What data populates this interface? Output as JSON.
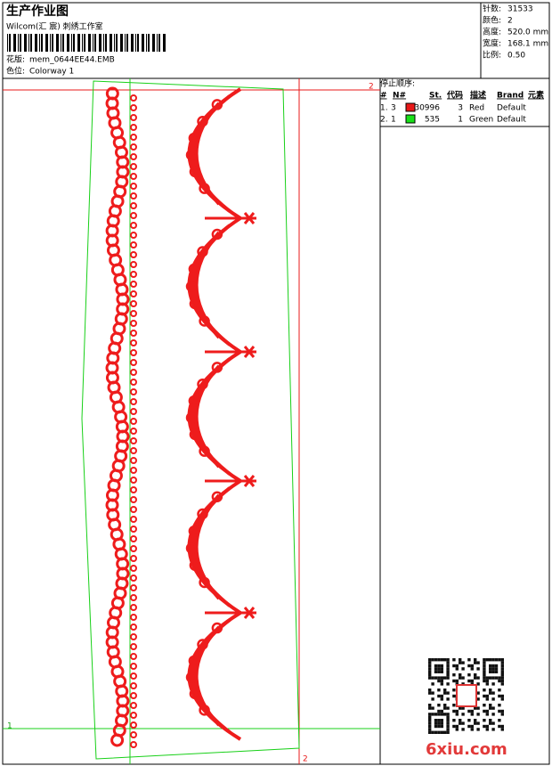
{
  "header": {
    "title": "生产作业图",
    "studio": "Wilcom(汇 宸) 刺绣工作室",
    "design_label": "花版:",
    "design_file": "mem_0644EE44.EMB",
    "colorway_label": "色位:",
    "colorway": "Colorway 1"
  },
  "info": [
    {
      "label": "针数:",
      "value": "31533"
    },
    {
      "label": "颜色:",
      "value": "2"
    },
    {
      "label": "高度:",
      "value": "520.0 mm"
    },
    {
      "label": "宽度:",
      "value": "168.1 mm"
    },
    {
      "label": "比例:",
      "value": "0.50"
    }
  ],
  "stop_sequence": {
    "title": "停止顺序:",
    "columns": [
      "#",
      "N#",
      "St.",
      "代码",
      "描述",
      "Brand",
      "元素"
    ],
    "rows": [
      {
        "index": "1.",
        "needle": "3",
        "color": "#e81818",
        "stitches": "30996",
        "code": "3",
        "description": "Red",
        "brand": "Default"
      },
      {
        "index": "2.",
        "needle": "1",
        "color": "#18e018",
        "stitches": "535",
        "code": "1",
        "description": "Green",
        "brand": "Default"
      }
    ]
  },
  "markers": {
    "top_right": "2",
    "bottom_left": "1",
    "bottom_right": "2"
  },
  "watermark": "6xiu.com"
}
